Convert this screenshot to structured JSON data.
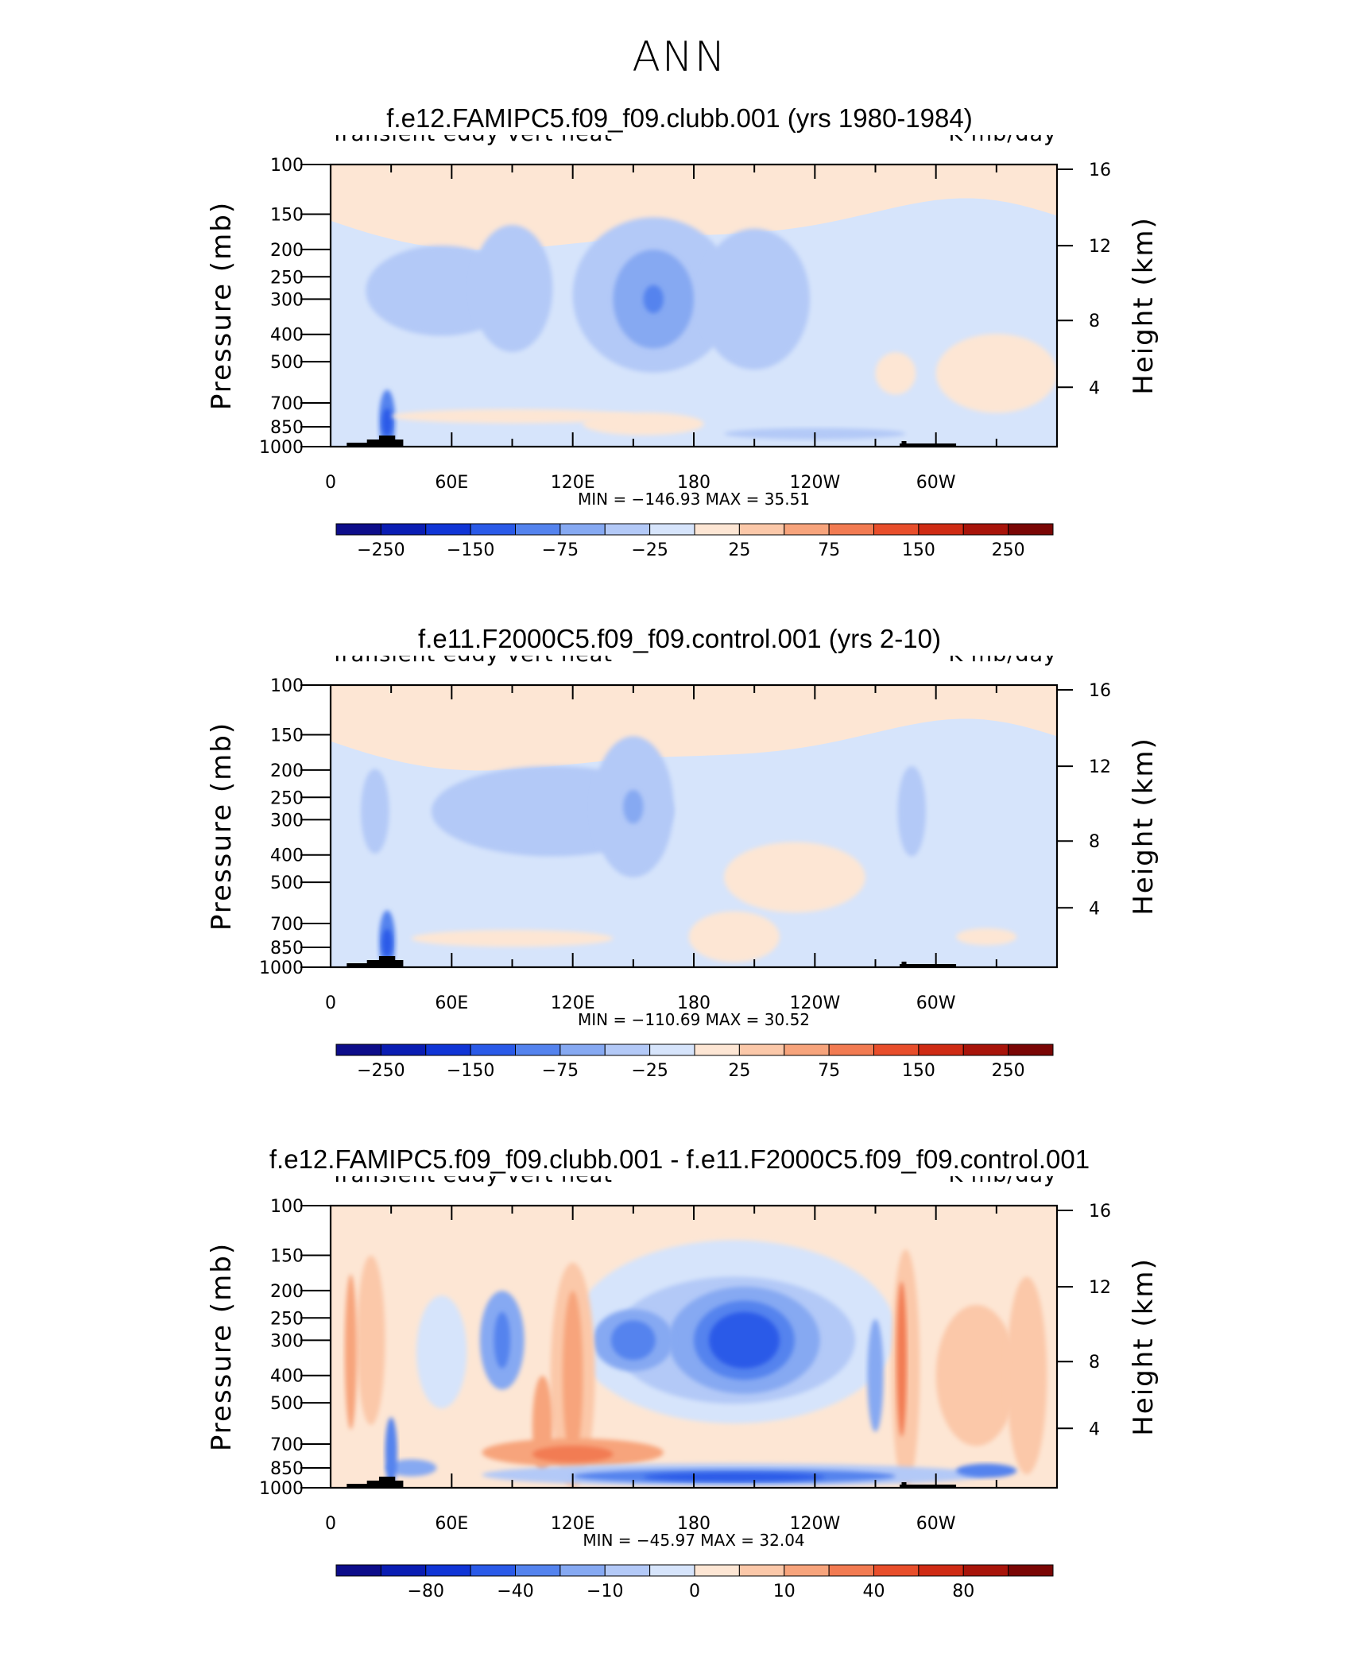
{
  "figure_title": "ANN",
  "chart_data": [
    {
      "type": "heatmap",
      "title": "f.e12.FAMIPC5.f09_f09.clubb.001 (yrs 1980-1984)",
      "left_subtitle": "Transient eddy vert heat",
      "right_subtitle": "K mb/day",
      "ylabel": "Pressure (mb)",
      "ylabel_right": "Height (km)",
      "yticks": [
        "100",
        "150",
        "200",
        "250",
        "300",
        "400",
        "500",
        "700",
        "850",
        "1000"
      ],
      "yticks_right": [
        "16",
        "12",
        "8",
        "4"
      ],
      "xticks": [
        "0",
        "60E",
        "120E",
        "180",
        "120W",
        "60W"
      ],
      "stats": "MIN = −146.93   MAX =   35.51",
      "colorbar_labels": [
        "−250",
        "−150",
        "−75",
        "−25",
        "25",
        "75",
        "150",
        "250"
      ],
      "colors": [
        "#0d0d8a",
        "#0a1db3",
        "#1035d6",
        "#2a5ae8",
        "#5483ee",
        "#86a9f2",
        "#b3c9f7",
        "#d6e4fb",
        "#fde6d4",
        "#fbc8a9",
        "#f7a47c",
        "#f27b52",
        "#e84e2b",
        "#cf2b14",
        "#a8140a",
        "#7a0605"
      ],
      "features": {
        "upper_band": "#fde6d4",
        "troposphere": "#d6e4fb",
        "blobs": [
          {
            "lon": 55,
            "p": 280,
            "level": "#b3c9f7",
            "w": 75,
            "h": 0.32
          },
          {
            "lon": 90,
            "p": 275,
            "level": "#b3c9f7",
            "w": 40,
            "h": 0.45
          },
          {
            "lon": 160,
            "p": 290,
            "level": "#b3c9f7",
            "w": 80,
            "h": 0.55
          },
          {
            "lon": 160,
            "p": 300,
            "level": "#86a9f2",
            "w": 40,
            "h": 0.35
          },
          {
            "lon": 160,
            "p": 300,
            "level": "#5483ee",
            "w": 10,
            "h": 0.1
          },
          {
            "lon": 210,
            "p": 300,
            "level": "#b3c9f7",
            "w": 55,
            "h": 0.5
          },
          {
            "lon": 28,
            "p": 810,
            "level": "#5483ee",
            "w": 8,
            "h": 0.22
          },
          {
            "lon": 28,
            "p": 820,
            "level": "#2a5ae8",
            "w": 5,
            "h": 0.1
          },
          {
            "lon": 90,
            "p": 780,
            "level": "#fde6d4",
            "w": 120,
            "h": 0.05
          },
          {
            "lon": 155,
            "p": 830,
            "level": "#fde6d4",
            "w": 60,
            "h": 0.08
          },
          {
            "lon": 330,
            "p": 550,
            "level": "#fde6d4",
            "w": 60,
            "h": 0.28
          },
          {
            "lon": 280,
            "p": 550,
            "level": "#fde6d4",
            "w": 20,
            "h": 0.15
          },
          {
            "lon": 240,
            "p": 900,
            "level": "#b3c9f7",
            "w": 90,
            "h": 0.04
          }
        ]
      }
    },
    {
      "type": "heatmap",
      "title": "f.e11.F2000C5.f09_f09.control.001 (yrs 2-10)",
      "left_subtitle": "Transient eddy vert heat",
      "right_subtitle": "K mb/day",
      "ylabel": "Pressure (mb)",
      "ylabel_right": "Height (km)",
      "yticks": [
        "100",
        "150",
        "200",
        "250",
        "300",
        "400",
        "500",
        "700",
        "850",
        "1000"
      ],
      "yticks_right": [
        "16",
        "12",
        "8",
        "4"
      ],
      "xticks": [
        "0",
        "60E",
        "120E",
        "180",
        "120W",
        "60W"
      ],
      "stats": "MIN = −110.69   MAX =   30.52",
      "colorbar_labels": [
        "−250",
        "−150",
        "−75",
        "−25",
        "25",
        "75",
        "150",
        "250"
      ],
      "colors": [
        "#0d0d8a",
        "#0a1db3",
        "#1035d6",
        "#2a5ae8",
        "#5483ee",
        "#86a9f2",
        "#b3c9f7",
        "#d6e4fb",
        "#fde6d4",
        "#fbc8a9",
        "#f7a47c",
        "#f27b52",
        "#e84e2b",
        "#cf2b14",
        "#a8140a",
        "#7a0605"
      ],
      "features": {
        "upper_band": "#fde6d4",
        "troposphere": "#d6e4fb",
        "blobs": [
          {
            "lon": 22,
            "p": 280,
            "level": "#b3c9f7",
            "w": 14,
            "h": 0.3
          },
          {
            "lon": 110,
            "p": 280,
            "level": "#b3c9f7",
            "w": 120,
            "h": 0.32
          },
          {
            "lon": 150,
            "p": 270,
            "level": "#b3c9f7",
            "w": 40,
            "h": 0.5
          },
          {
            "lon": 150,
            "p": 270,
            "level": "#86a9f2",
            "w": 10,
            "h": 0.12
          },
          {
            "lon": 288,
            "p": 280,
            "level": "#b3c9f7",
            "w": 14,
            "h": 0.32
          },
          {
            "lon": 28,
            "p": 810,
            "level": "#5483ee",
            "w": 8,
            "h": 0.22
          },
          {
            "lon": 28,
            "p": 820,
            "level": "#2a5ae8",
            "w": 5,
            "h": 0.1
          },
          {
            "lon": 230,
            "p": 480,
            "level": "#fde6d4",
            "w": 70,
            "h": 0.25
          },
          {
            "lon": 200,
            "p": 780,
            "level": "#fde6d4",
            "w": 45,
            "h": 0.18
          },
          {
            "lon": 90,
            "p": 790,
            "level": "#fde6d4",
            "w": 100,
            "h": 0.06
          },
          {
            "lon": 325,
            "p": 780,
            "level": "#fde6d4",
            "w": 30,
            "h": 0.06
          }
        ]
      }
    },
    {
      "type": "heatmap",
      "title": "f.e12.FAMIPC5.f09_f09.clubb.001 - f.e11.F2000C5.f09_f09.control.001",
      "left_subtitle": "Transient eddy vert heat",
      "right_subtitle": "K mb/day",
      "ylabel": "Pressure (mb)",
      "ylabel_right": "Height (km)",
      "yticks": [
        "100",
        "150",
        "200",
        "250",
        "300",
        "400",
        "500",
        "700",
        "850",
        "1000"
      ],
      "yticks_right": [
        "16",
        "12",
        "8",
        "4"
      ],
      "xticks": [
        "0",
        "60E",
        "120E",
        "180",
        "120W",
        "60W"
      ],
      "stats": "MIN = −45.97   MAX =   32.04",
      "colorbar_labels": [
        "−80",
        "−40",
        "−10",
        "0",
        "10",
        "40",
        "80"
      ],
      "colors": [
        "#0d0d8a",
        "#0a1db3",
        "#1035d6",
        "#2a5ae8",
        "#5483ee",
        "#86a9f2",
        "#b3c9f7",
        "#d6e4fb",
        "#fde6d4",
        "#fbc8a9",
        "#f7a47c",
        "#f27b52",
        "#e84e2b",
        "#cf2b14",
        "#a8140a",
        "#7a0605"
      ],
      "features": {
        "upper_band": "#fde6d4",
        "troposphere": "#fde6d4",
        "blobs": [
          {
            "lon": 200,
            "p": 280,
            "level": "#d6e4fb",
            "w": 160,
            "h": 0.65
          },
          {
            "lon": 200,
            "p": 300,
            "level": "#b3c9f7",
            "w": 120,
            "h": 0.45
          },
          {
            "lon": 205,
            "p": 300,
            "level": "#86a9f2",
            "w": 75,
            "h": 0.38
          },
          {
            "lon": 205,
            "p": 300,
            "level": "#5483ee",
            "w": 50,
            "h": 0.28
          },
          {
            "lon": 205,
            "p": 300,
            "level": "#2a5ae8",
            "w": 35,
            "h": 0.2
          },
          {
            "lon": 150,
            "p": 300,
            "level": "#86a9f2",
            "w": 40,
            "h": 0.22
          },
          {
            "lon": 150,
            "p": 300,
            "level": "#5483ee",
            "w": 22,
            "h": 0.14
          },
          {
            "lon": 85,
            "p": 300,
            "level": "#86a9f2",
            "w": 22,
            "h": 0.35
          },
          {
            "lon": 85,
            "p": 300,
            "level": "#5483ee",
            "w": 8,
            "h": 0.2
          },
          {
            "lon": 55,
            "p": 330,
            "level": "#d6e4fb",
            "w": 25,
            "h": 0.4
          },
          {
            "lon": 20,
            "p": 300,
            "level": "#fbc8a9",
            "w": 14,
            "h": 0.6
          },
          {
            "lon": 10,
            "p": 330,
            "level": "#f7a47c",
            "w": 6,
            "h": 0.55
          },
          {
            "lon": 120,
            "p": 400,
            "level": "#fbc8a9",
            "w": 22,
            "h": 0.8
          },
          {
            "lon": 120,
            "p": 400,
            "level": "#f7a47c",
            "w": 10,
            "h": 0.6
          },
          {
            "lon": 105,
            "p": 600,
            "level": "#f7a47c",
            "w": 10,
            "h": 0.35
          },
          {
            "lon": 120,
            "p": 750,
            "level": "#f7a47c",
            "w": 90,
            "h": 0.1
          },
          {
            "lon": 120,
            "p": 760,
            "level": "#f27b52",
            "w": 40,
            "h": 0.06
          },
          {
            "lon": 285,
            "p": 380,
            "level": "#fbc8a9",
            "w": 14,
            "h": 0.85
          },
          {
            "lon": 283,
            "p": 350,
            "level": "#f27b52",
            "w": 5,
            "h": 0.55
          },
          {
            "lon": 320,
            "p": 400,
            "level": "#fbc8a9",
            "w": 40,
            "h": 0.5
          },
          {
            "lon": 345,
            "p": 400,
            "level": "#fbc8a9",
            "w": 20,
            "h": 0.7
          },
          {
            "lon": 200,
            "p": 900,
            "level": "#b3c9f7",
            "w": 250,
            "h": 0.08
          },
          {
            "lon": 200,
            "p": 910,
            "level": "#5483ee",
            "w": 160,
            "h": 0.05
          },
          {
            "lon": 200,
            "p": 915,
            "level": "#2a5ae8",
            "w": 90,
            "h": 0.03
          },
          {
            "lon": 40,
            "p": 850,
            "level": "#86a9f2",
            "w": 25,
            "h": 0.06
          },
          {
            "lon": 325,
            "p": 870,
            "level": "#5483ee",
            "w": 30,
            "h": 0.05
          },
          {
            "lon": 270,
            "p": 400,
            "level": "#86a9f2",
            "w": 8,
            "h": 0.4
          },
          {
            "lon": 30,
            "p": 750,
            "level": "#5483ee",
            "w": 6,
            "h": 0.25
          }
        ]
      }
    }
  ]
}
